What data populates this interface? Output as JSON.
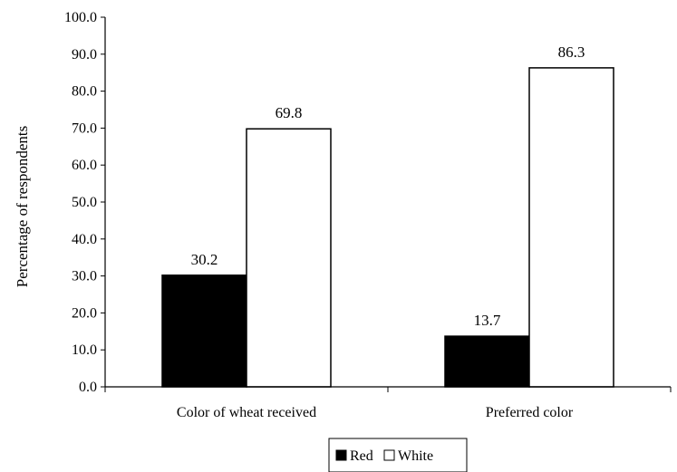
{
  "chart_data": {
    "type": "bar",
    "title": "",
    "xlabel": "",
    "ylabel": "Percentage of respondents",
    "categories": [
      "Color of wheat received",
      "Preferred color"
    ],
    "series": [
      {
        "name": "Red",
        "color": "#000000",
        "values": [
          30.2,
          13.7
        ],
        "labels": [
          "30.2",
          "13.7"
        ]
      },
      {
        "name": "White",
        "color": "#ffffff",
        "values": [
          69.8,
          86.3
        ],
        "labels": [
          "69.8",
          "86.3"
        ]
      }
    ],
    "ylim": [
      0,
      100
    ],
    "yticks": [
      0,
      10,
      20,
      30,
      40,
      50,
      60,
      70,
      80,
      90,
      100
    ],
    "ytick_labels": [
      "0.0",
      "10.0",
      "20.0",
      "30.0",
      "40.0",
      "50.0",
      "60.0",
      "70.0",
      "80.0",
      "90.0",
      "100.0"
    ],
    "grid": false,
    "legend_position": "bottom"
  }
}
